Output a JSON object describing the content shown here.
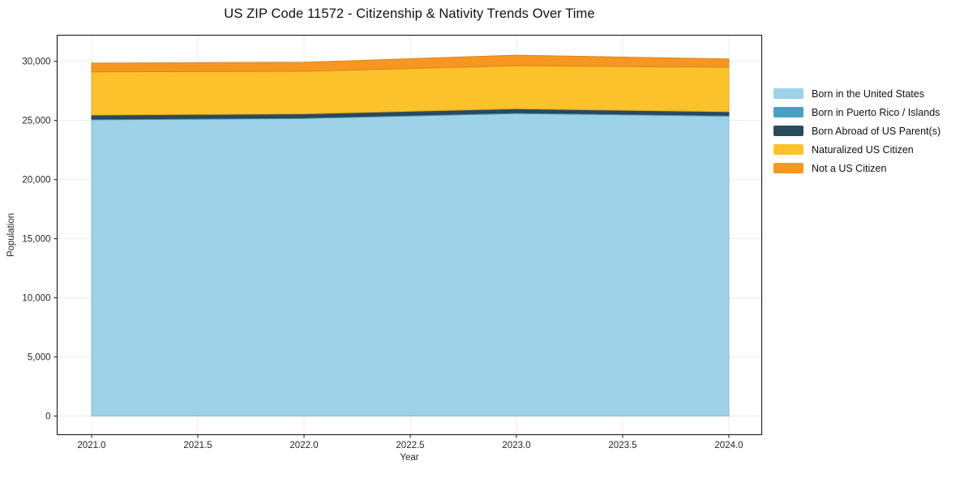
{
  "title": "US ZIP Code 11572 - Citizenship & Nativity Trends Over Time",
  "axes": {
    "x_label": "Year",
    "y_label": "Population",
    "x_ticks": [
      "2021.0",
      "2021.5",
      "2022.0",
      "2022.5",
      "2023.0",
      "2023.5",
      "2024.0"
    ],
    "y_ticks": [
      "0",
      "5,000",
      "10,000",
      "15,000",
      "20,000",
      "25,000",
      "30,000"
    ]
  },
  "chart_data": {
    "type": "area",
    "stacked": true,
    "title": "US ZIP Code 11572 - Citizenship & Nativity Trends Over Time",
    "xlabel": "Year",
    "ylabel": "Population",
    "x": [
      2021,
      2022,
      2023,
      2024
    ],
    "x_tick_values": [
      2021.0,
      2021.5,
      2022.0,
      2022.5,
      2023.0,
      2023.5,
      2024.0
    ],
    "y_tick_values": [
      0,
      5000,
      10000,
      15000,
      20000,
      25000,
      30000
    ],
    "ylim": [
      0,
      30000
    ],
    "grid": true,
    "legend_position": "right",
    "series": [
      {
        "name": "Born in the United States",
        "color": "#9DD2E8",
        "values": [
          25050,
          25170,
          25590,
          25370
        ]
      },
      {
        "name": "Born in Puerto Rico / Islands",
        "color": "#46A2C4",
        "values": [
          70,
          70,
          70,
          70
        ]
      },
      {
        "name": "Born Abroad of US Parent(s)",
        "color": "#2A4A5E",
        "values": [
          340,
          320,
          330,
          300
        ]
      },
      {
        "name": "Naturalized US Citizen",
        "color": "#FCC22A",
        "values": [
          3650,
          3600,
          3640,
          3770
        ]
      },
      {
        "name": "Not a US Citizen",
        "color": "#F79721",
        "values": [
          740,
          760,
          890,
          690
        ]
      }
    ],
    "totals_by_year": [
      29850,
      29920,
      30520,
      30200
    ]
  }
}
